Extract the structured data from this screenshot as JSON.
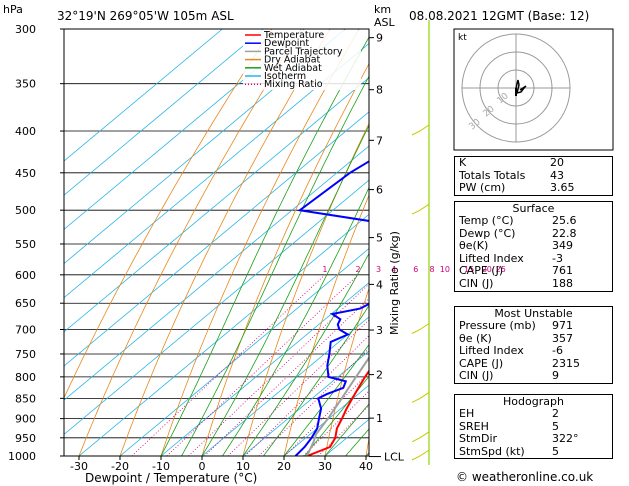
{
  "header": {
    "location": "32°19'N  269°05'W  105m  ASL",
    "datetime": "08.08.2021  12GMT  (Base: 12)",
    "hpa_label": "hPa",
    "km_label": "km",
    "asl_label": "ASL"
  },
  "chart_data": {
    "type": "line",
    "title": "",
    "xlabel": "Dewpoint / Temperature (°C)",
    "ylabel": "Mixing Ratio (g/kg)",
    "xlim": [
      -40,
      40
    ],
    "ylim": [
      1000,
      300
    ],
    "y_scale": "log-pressure",
    "x_ticks": [
      "-30",
      "-20",
      "-10",
      "0",
      "10",
      "20",
      "30",
      "40"
    ],
    "pressure_ticks": [
      "300",
      "350",
      "400",
      "450",
      "500",
      "550",
      "600",
      "650",
      "700",
      "750",
      "800",
      "850",
      "900",
      "950",
      "1000"
    ],
    "km_ticks": [
      "9",
      "8",
      "7",
      "6",
      "5",
      "4",
      "3",
      "2",
      "1"
    ],
    "lcl_label": "LCL",
    "mixing_ratio_labels": [
      "1",
      "2",
      "3",
      "4",
      "6",
      "8",
      "10",
      "15",
      "20",
      "25"
    ],
    "legend": [
      "Temperature",
      "Dewpoint",
      "Parcel Trajectory",
      "Dry Adiabat",
      "Wet Adiabat",
      "Isotherm",
      "Mixing Ratio"
    ],
    "legend_position": "top-left",
    "series": [
      {
        "name": "Temperature",
        "color": "#ff0000",
        "points": [
          [
            1000,
            25.6
          ],
          [
            975,
            28.6
          ],
          [
            950,
            27.2
          ],
          [
            925,
            24.8
          ],
          [
            900,
            23.2
          ],
          [
            875,
            21.4
          ],
          [
            850,
            19.8
          ],
          [
            825,
            18.2
          ],
          [
            800,
            16.6
          ],
          [
            775,
            15.2
          ],
          [
            750,
            13.4
          ],
          [
            725,
            11.6
          ],
          [
            700,
            9.6
          ],
          [
            675,
            7.8
          ],
          [
            650,
            6.0
          ],
          [
            625,
            4.0
          ],
          [
            600,
            1.8
          ],
          [
            575,
            -0.6
          ],
          [
            550,
            -2.9
          ],
          [
            525,
            -5.4
          ],
          [
            500,
            -7.9
          ],
          [
            475,
            -10.7
          ],
          [
            450,
            -13.5
          ],
          [
            425,
            -16.9
          ],
          [
            400,
            -20.5
          ],
          [
            375,
            -24.3
          ],
          [
            350,
            -28.7
          ],
          [
            325,
            -33.7
          ],
          [
            300,
            -38.7
          ]
        ]
      },
      {
        "name": "Dewpoint",
        "color": "#0000ff",
        "points": [
          [
            1000,
            22.8
          ],
          [
            975,
            22.4
          ],
          [
            950,
            21.4
          ],
          [
            925,
            20.0
          ],
          [
            900,
            17.6
          ],
          [
            875,
            15.2
          ],
          [
            850,
            11.5
          ],
          [
            840,
            12.3
          ],
          [
            825,
            14.5
          ],
          [
            810,
            13.2
          ],
          [
            800,
            7.7
          ],
          [
            775,
            4.1
          ],
          [
            750,
            1.2
          ],
          [
            725,
            -2.0
          ],
          [
            710,
            0.0
          ],
          [
            700,
            -3.5
          ],
          [
            690,
            -5.4
          ],
          [
            680,
            -6.3
          ],
          [
            670,
            -9.8
          ],
          [
            660,
            -4.6
          ],
          [
            650,
            -3.6
          ],
          [
            630,
            -4.2
          ],
          [
            620,
            -3.9
          ],
          [
            610,
            -9.2
          ],
          [
            600,
            -11.0
          ],
          [
            590,
            -12.0
          ],
          [
            580,
            -11.5
          ],
          [
            560,
            -12.9
          ],
          [
            540,
            -17.4
          ],
          [
            520,
            -22.2
          ],
          [
            500,
            -48.1
          ],
          [
            450,
            -46.8
          ],
          [
            420,
            -44.0
          ],
          [
            410,
            -37.7
          ],
          [
            400,
            -44.1
          ],
          [
            390,
            -44.1
          ],
          [
            380,
            -38.3
          ],
          [
            375,
            -35.8
          ],
          [
            370,
            -35.6
          ],
          [
            350,
            -45.1
          ],
          [
            325,
            -51.0
          ],
          [
            300,
            -56.0
          ]
        ]
      },
      {
        "name": "Parcel Trajectory",
        "color": "#a0a0a0",
        "points": [
          [
            1000,
            25.6
          ],
          [
            960,
            23.0
          ],
          [
            940,
            21.4
          ],
          [
            900,
            19.8
          ],
          [
            850,
            17.2
          ],
          [
            800,
            14.4
          ],
          [
            750,
            11.5
          ],
          [
            700,
            8.4
          ],
          [
            650,
            5.0
          ],
          [
            600,
            1.3
          ],
          [
            550,
            -2.6
          ],
          [
            500,
            -7.3
          ],
          [
            450,
            -12.6
          ],
          [
            400,
            -18.8
          ],
          [
            375,
            -22.6
          ],
          [
            350,
            -26.9
          ]
        ]
      }
    ]
  },
  "hodograph": {
    "units_label": "kt",
    "ring_labels": [
      "10",
      "20",
      "30"
    ]
  },
  "indices": [
    {
      "label": "K",
      "value": "20"
    },
    {
      "label": "Totals Totals",
      "value": "43"
    },
    {
      "label": "PW (cm)",
      "value": "3.65"
    }
  ],
  "surface": {
    "title": "Surface",
    "rows": [
      {
        "label": "Temp (°C)",
        "value": "25.6"
      },
      {
        "label": "Dewp (°C)",
        "value": "22.8"
      },
      {
        "label": "θe(K)",
        "value": "349"
      },
      {
        "label": "Lifted Index",
        "value": "-3"
      },
      {
        "label": "CAPE (J)",
        "value": "761"
      },
      {
        "label": "CIN (J)",
        "value": "188"
      }
    ]
  },
  "most_unstable": {
    "title": "Most Unstable",
    "rows": [
      {
        "label": "Pressure (mb)",
        "value": "971"
      },
      {
        "label": "θe (K)",
        "value": "357"
      },
      {
        "label": "Lifted Index",
        "value": "-6"
      },
      {
        "label": "CAPE (J)",
        "value": "2315"
      },
      {
        "label": "CIN (J)",
        "value": "9"
      }
    ]
  },
  "hodograph_table": {
    "title": "Hodograph",
    "rows": [
      {
        "label": "EH",
        "value": "2"
      },
      {
        "label": "SREH",
        "value": "5"
      },
      {
        "label": "StmDir",
        "value": "322°"
      },
      {
        "label": "StmSpd (kt)",
        "value": "5"
      }
    ]
  },
  "credit": "© weatheronline.co.uk"
}
